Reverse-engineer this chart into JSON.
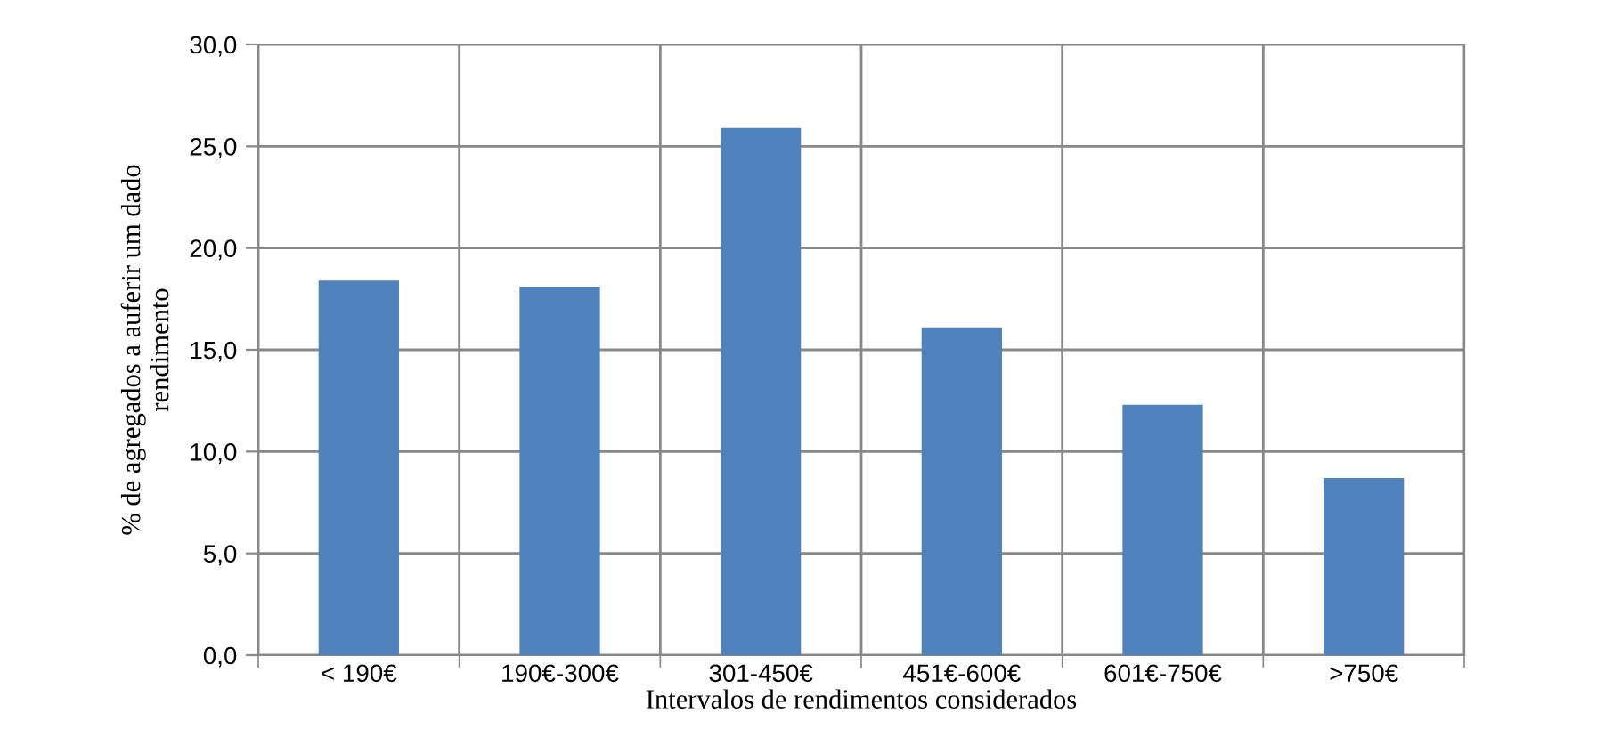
{
  "chart_data": {
    "type": "bar",
    "xlabel": "Intervalos de rendimentos considerados",
    "ylabel": "% de agregados a auferir um dado\nrendimento",
    "categories": [
      "< 190€",
      "190€-300€",
      "301-450€",
      "451€-600€",
      "601€-750€",
      ">750€"
    ],
    "values": [
      18.4,
      18.1,
      25.9,
      16.1,
      12.3,
      8.7
    ],
    "color": "#4f81bd",
    "ylim": [
      0,
      30
    ],
    "yticks": [
      {
        "value": 0,
        "label": "0,0"
      },
      {
        "value": 5,
        "label": "5,0"
      },
      {
        "value": 10,
        "label": "10,0"
      },
      {
        "value": 15,
        "label": "15,0"
      },
      {
        "value": 20,
        "label": "20,0"
      },
      {
        "value": 25,
        "label": "25,0"
      },
      {
        "value": 30,
        "label": "30,0"
      }
    ],
    "grid": true
  }
}
